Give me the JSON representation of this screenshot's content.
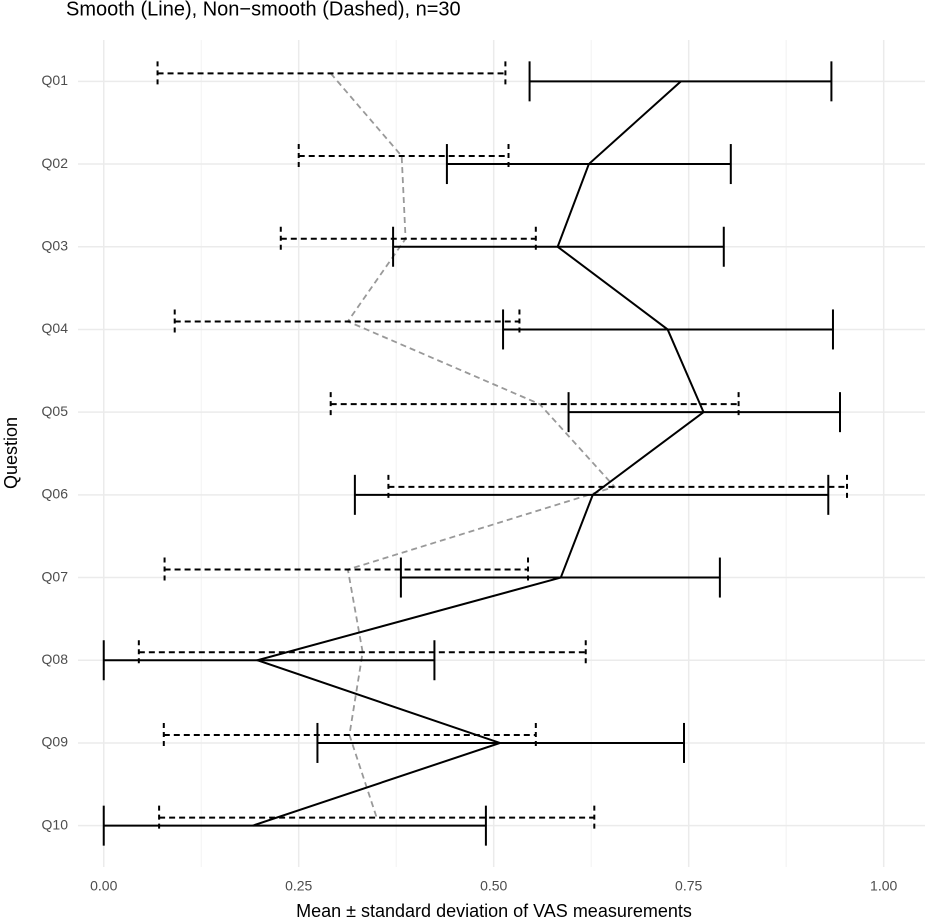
{
  "chart_data": {
    "type": "errorbar-h",
    "title": "Smooth (Line), Non−smooth (Dashed), n=30",
    "x_label": "Mean ± standard deviation of VAS measurements",
    "y_label": "Question",
    "categories": [
      "Q01",
      "Q02",
      "Q03",
      "Q04",
      "Q05",
      "Q06",
      "Q07",
      "Q08",
      "Q09",
      "Q10"
    ],
    "series": [
      {
        "name": "Smooth",
        "color": "#000000",
        "line_color": "#000000",
        "dashed": false,
        "values": [
          0.74,
          0.622,
          0.582,
          0.723,
          0.769,
          0.627,
          0.586,
          0.197,
          0.508,
          0.191
        ],
        "lower": [
          0.546,
          0.44,
          0.371,
          0.512,
          0.596,
          0.322,
          0.381,
          0,
          0.274,
          0
        ],
        "upper": [
          0.933,
          0.804,
          0.795,
          0.935,
          0.944,
          0.929,
          0.79,
          0.424,
          0.744,
          0.49
        ]
      },
      {
        "name": "Non-smooth",
        "color": "#000000",
        "line_color": "#999999",
        "dashed": true,
        "values": [
          0.291,
          0.382,
          0.387,
          0.313,
          0.559,
          0.655,
          0.313,
          0.332,
          0.315,
          0.35
        ],
        "lower": [
          0.069,
          0.25,
          0.227,
          0.091,
          0.291,
          0.365,
          0.078,
          0.045,
          0.077,
          0.071
        ],
        "upper": [
          0.515,
          0.519,
          0.554,
          0.533,
          0.814,
          0.953,
          0.544,
          0.618,
          0.554,
          0.629
        ]
      }
    ],
    "xlim": [
      -0.033,
      1.053
    ],
    "xticks": [
      {
        "value": 0,
        "label": "0.00"
      },
      {
        "value": 0.25,
        "label": "0.25"
      },
      {
        "value": 0.5,
        "label": "0.50"
      },
      {
        "value": 0.75,
        "label": "0.75"
      },
      {
        "value": 1,
        "label": "1.00"
      }
    ],
    "xminor_ticks": [
      0.125,
      0.375,
      0.625,
      0.875
    ],
    "grid": true
  }
}
